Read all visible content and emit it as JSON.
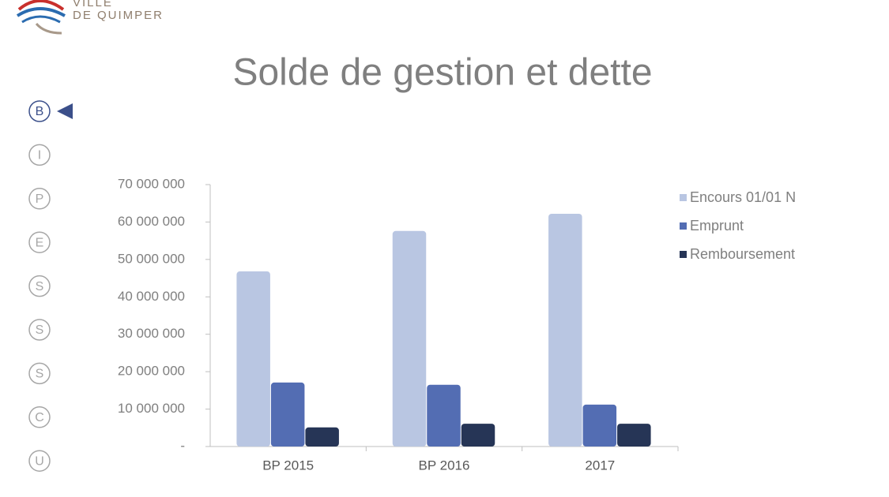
{
  "logo": [
    "VILLE",
    "DE QUIMPER"
  ],
  "nav": [
    "B",
    "I",
    "P",
    "E",
    "S",
    "S",
    "S",
    "C",
    "U"
  ],
  "chart_data": {
    "type": "bar",
    "title": "Solde de gestion et dette",
    "categories": [
      "BP 2015",
      "BP 2016",
      "2017"
    ],
    "series": [
      {
        "name": "Encours 01/01 N",
        "color": "#b9c6e2",
        "values": [
          46800000,
          57600000,
          62200000
        ]
      },
      {
        "name": "Emprunt",
        "color": "#536db3",
        "values": [
          17100000,
          16500000,
          11200000
        ]
      },
      {
        "name": "Remboursement",
        "color": "#263556",
        "values": [
          5100000,
          6100000,
          6100000
        ]
      }
    ],
    "ylim": [
      0,
      70000000
    ],
    "yticks": [
      {
        "value": 0,
        "label": "-"
      },
      {
        "value": 10000000,
        "label": "10 000 000"
      },
      {
        "value": 20000000,
        "label": "20 000 000"
      },
      {
        "value": 30000000,
        "label": "30 000 000"
      },
      {
        "value": 40000000,
        "label": "40 000 000"
      },
      {
        "value": 50000000,
        "label": "50 000 000"
      },
      {
        "value": 60000000,
        "label": "60 000 000"
      },
      {
        "value": 70000000,
        "label": "70 000 000"
      }
    ],
    "grid": false,
    "legend": "right"
  }
}
